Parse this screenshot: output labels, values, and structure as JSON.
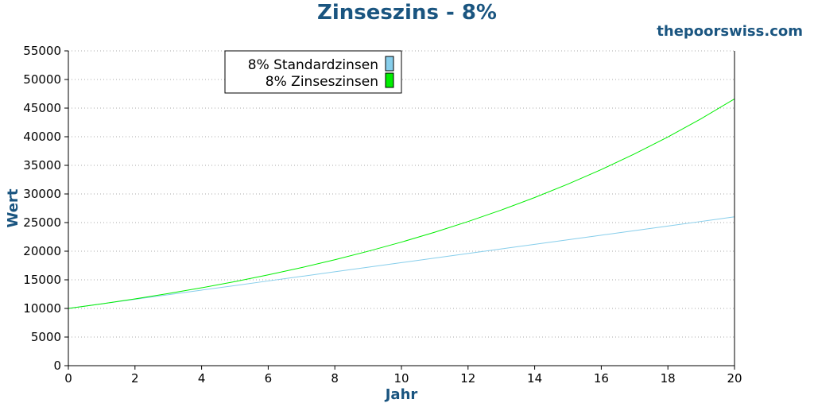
{
  "site": "thepoorswiss.com",
  "colors": {
    "title": "#1a5580",
    "standard": "#87ceeb",
    "compound": "#00ee00"
  },
  "chart_data": {
    "type": "line",
    "title": "Zinseszins - 8%",
    "xlabel": "Jahr",
    "ylabel": "Wert",
    "xlim": [
      0,
      20
    ],
    "ylim": [
      0,
      55000
    ],
    "x_ticks": [
      0,
      2,
      4,
      6,
      8,
      10,
      12,
      14,
      16,
      18,
      20
    ],
    "y_ticks": [
      0,
      5000,
      10000,
      15000,
      20000,
      25000,
      30000,
      35000,
      40000,
      45000,
      50000,
      55000
    ],
    "grid": "horizontal dotted",
    "legend_position": "top-left",
    "x": [
      0,
      1,
      2,
      3,
      4,
      5,
      6,
      7,
      8,
      9,
      10,
      11,
      12,
      13,
      14,
      15,
      16,
      17,
      18,
      19,
      20
    ],
    "series": [
      {
        "name": "8% Standardzinsen",
        "color": "#87ceeb",
        "values": [
          10000,
          10800,
          11600,
          12400,
          13200,
          14000,
          14800,
          15600,
          16400,
          17200,
          18000,
          18800,
          19600,
          20400,
          21200,
          22000,
          22800,
          23600,
          24400,
          25200,
          26000
        ]
      },
      {
        "name": "8% Zinseszinsen",
        "color": "#00ee00",
        "values": [
          10000,
          10800,
          11664,
          12597,
          13605,
          14693,
          15869,
          17138,
          18509,
          19990,
          21589,
          23316,
          25182,
          27196,
          29372,
          31722,
          34259,
          37000,
          39960,
          43157,
          46610
        ]
      }
    ]
  }
}
